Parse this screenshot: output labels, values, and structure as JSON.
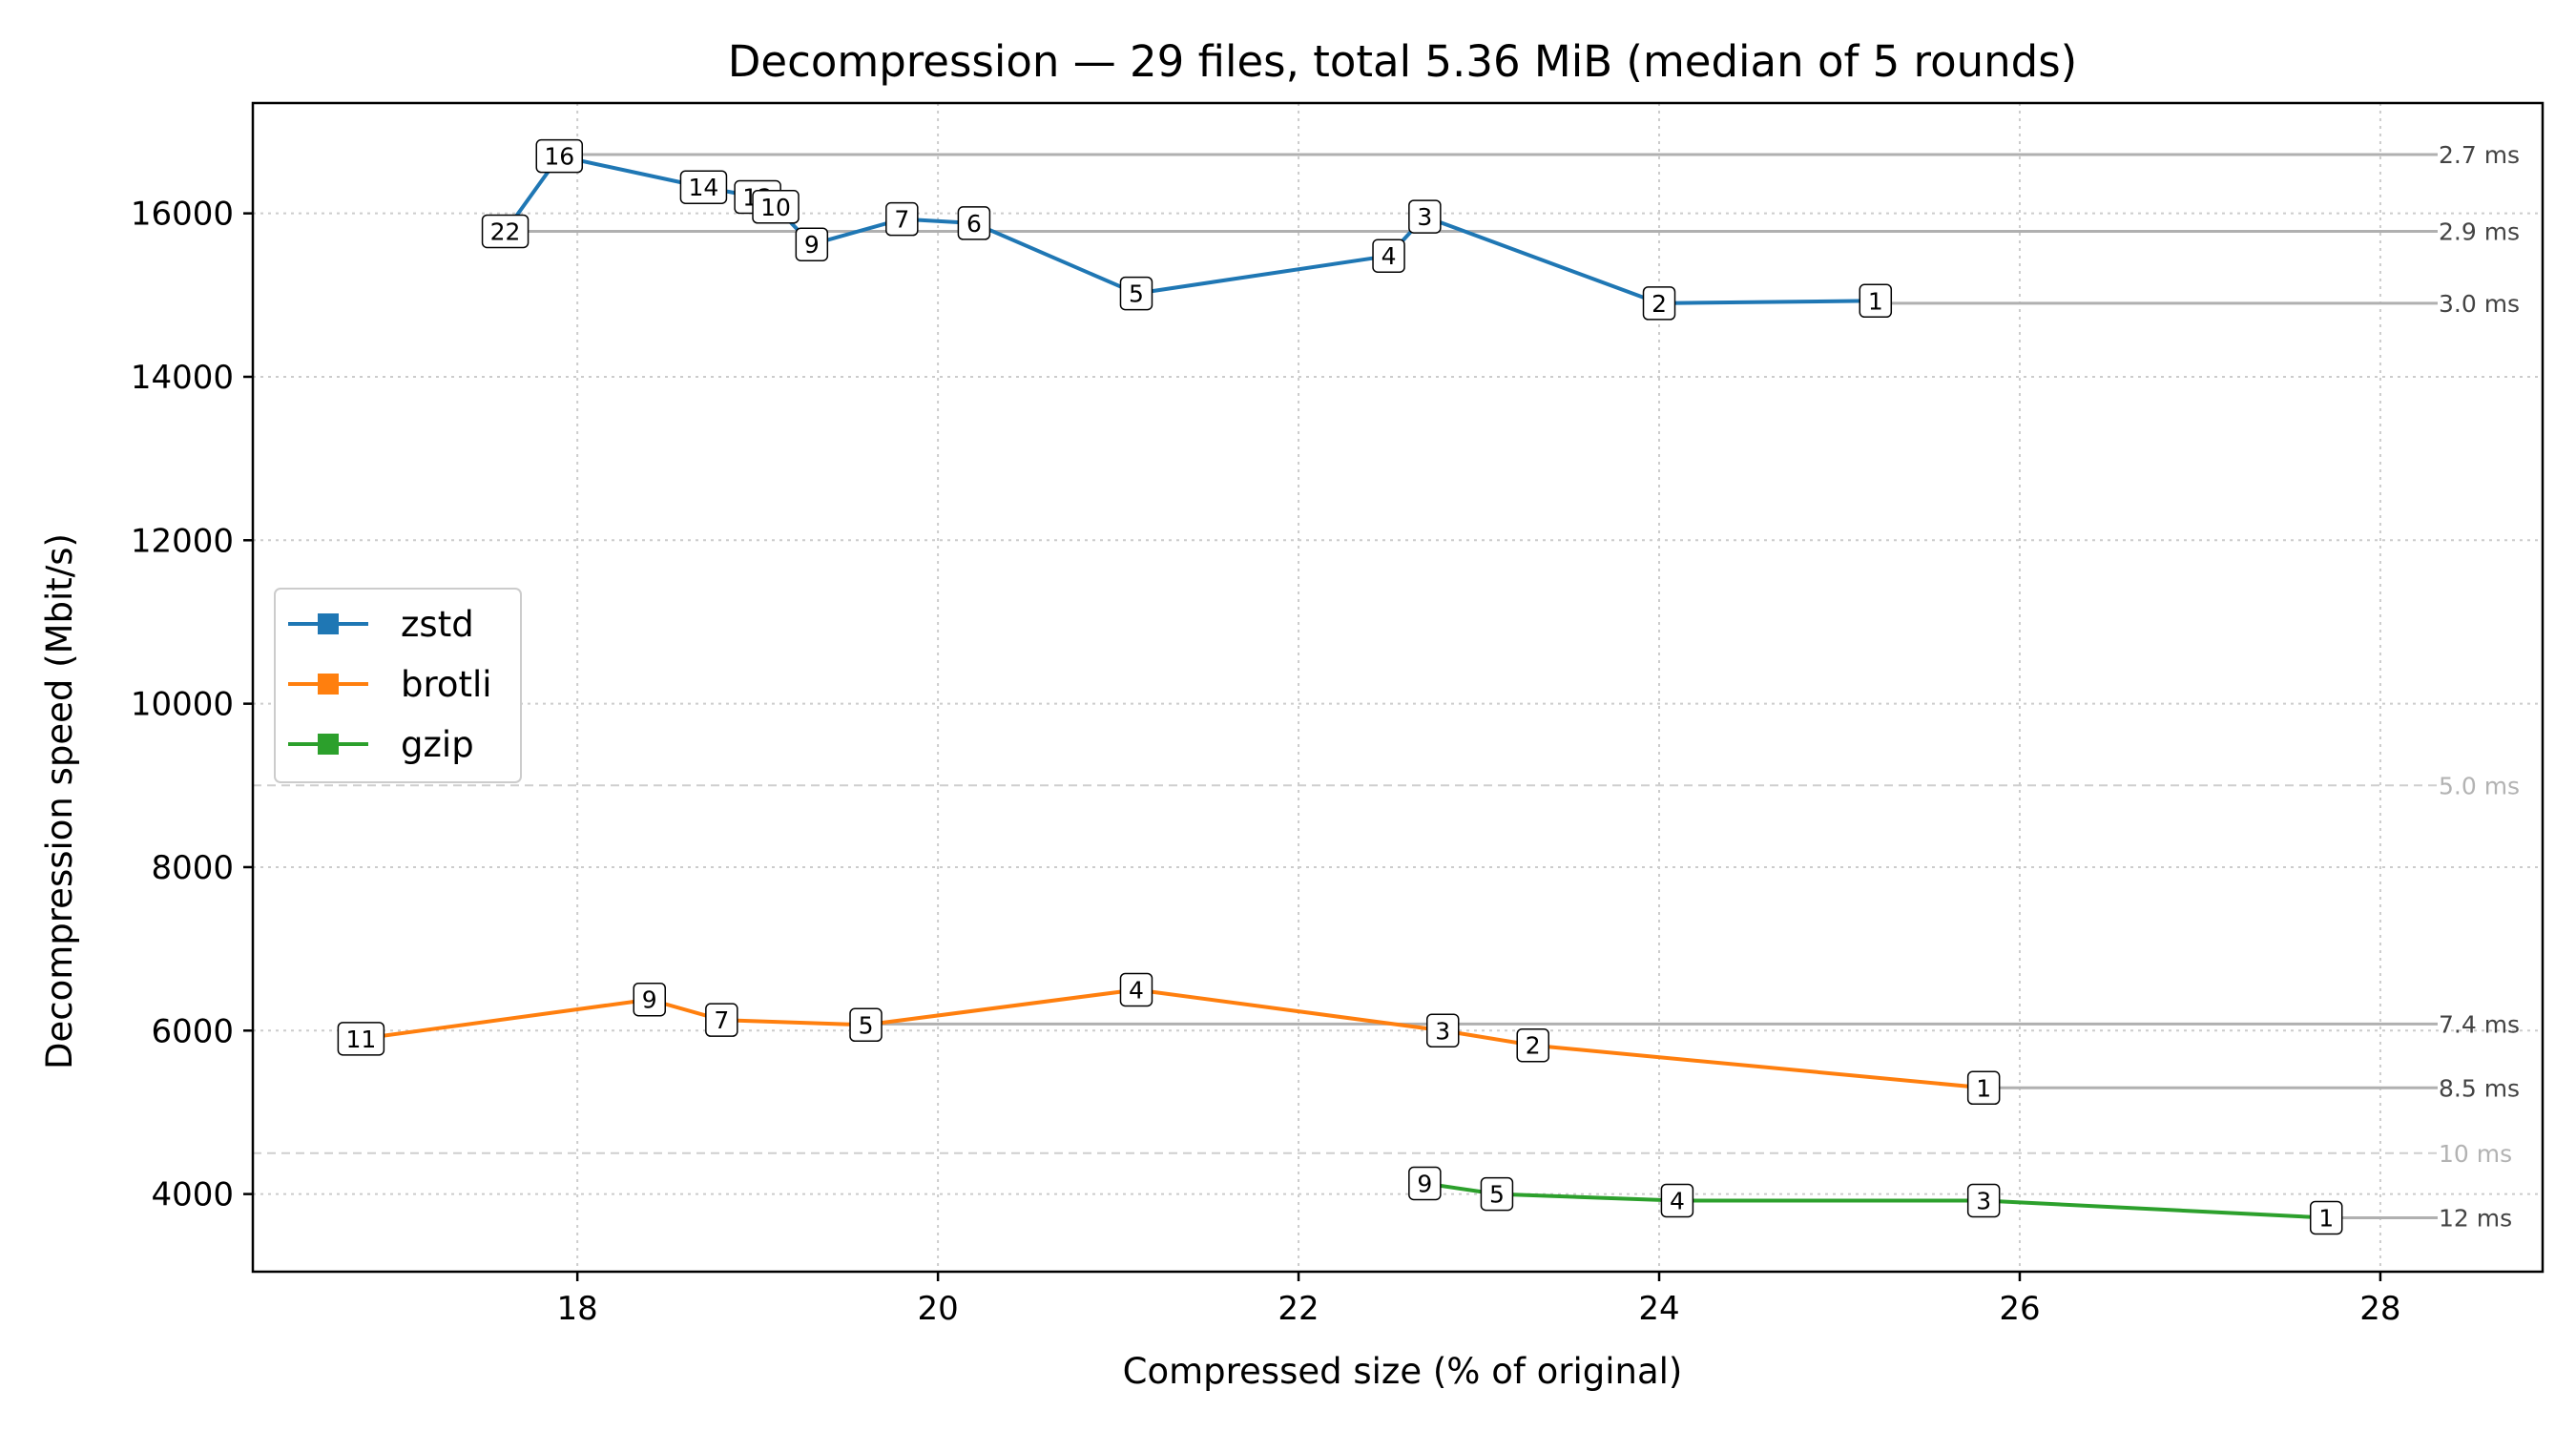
{
  "chart_data": {
    "type": "line",
    "title": "Decompression — 29 files, total 5.36 MiB (median of 5 rounds)",
    "xlabel": "Compressed size (% of original)",
    "ylabel": "Decompression speed (Mbit/s)",
    "xlim": [
      16.2,
      28.9
    ],
    "ylim": [
      3050,
      17350
    ],
    "xticks": [
      18,
      20,
      22,
      24,
      26,
      28
    ],
    "yticks": [
      4000,
      6000,
      8000,
      10000,
      12000,
      14000,
      16000
    ],
    "grid": true,
    "legend_position": "center-left",
    "series": [
      {
        "name": "zstd",
        "color": "#1f77b4",
        "points": [
          {
            "label": "22",
            "x": 17.6,
            "y": 15780
          },
          {
            "label": "16",
            "x": 17.9,
            "y": 16700
          },
          {
            "label": "14",
            "x": 18.7,
            "y": 16320
          },
          {
            "label": "12",
            "x": 19.0,
            "y": 16200
          },
          {
            "label": "10",
            "x": 19.1,
            "y": 16080
          },
          {
            "label": "9",
            "x": 19.3,
            "y": 15620
          },
          {
            "label": "7",
            "x": 19.8,
            "y": 15930
          },
          {
            "label": "6",
            "x": 20.2,
            "y": 15880
          },
          {
            "label": "5",
            "x": 21.1,
            "y": 15020
          },
          {
            "label": "4",
            "x": 22.5,
            "y": 15480
          },
          {
            "label": "3",
            "x": 22.7,
            "y": 15960
          },
          {
            "label": "2",
            "x": 24.0,
            "y": 14900
          },
          {
            "label": "1",
            "x": 25.2,
            "y": 14930
          }
        ]
      },
      {
        "name": "brotli",
        "color": "#ff7f0e",
        "points": [
          {
            "label": "11",
            "x": 16.8,
            "y": 5900
          },
          {
            "label": "9",
            "x": 18.4,
            "y": 6380
          },
          {
            "label": "7",
            "x": 18.8,
            "y": 6130
          },
          {
            "label": "5",
            "x": 19.6,
            "y": 6070
          },
          {
            "label": "4",
            "x": 21.1,
            "y": 6500
          },
          {
            "label": "3",
            "x": 22.8,
            "y": 6000
          },
          {
            "label": "2",
            "x": 23.3,
            "y": 5820
          },
          {
            "label": "1",
            "x": 25.8,
            "y": 5300
          }
        ]
      },
      {
        "name": "gzip",
        "color": "#2ca02c",
        "points": [
          {
            "label": "9",
            "x": 22.7,
            "y": 4130
          },
          {
            "label": "5",
            "x": 23.1,
            "y": 4000
          },
          {
            "label": "4",
            "x": 24.1,
            "y": 3920
          },
          {
            "label": "3",
            "x": 25.8,
            "y": 3920
          },
          {
            "label": "1",
            "x": 27.7,
            "y": 3710
          }
        ]
      }
    ],
    "reference_lines": [
      {
        "label": "2.7 ms",
        "y": 16720,
        "x_start": 17.9,
        "strong": true
      },
      {
        "label": "2.9 ms",
        "y": 15780,
        "x_start": 17.6,
        "strong": true
      },
      {
        "label": "3.0 ms",
        "y": 14900,
        "x_start": 25.2,
        "strong": true
      },
      {
        "label": "5.0 ms",
        "y": 9000,
        "x_start": 16.2,
        "strong": false
      },
      {
        "label": "7.4 ms",
        "y": 6080,
        "x_start": 19.6,
        "strong": true
      },
      {
        "label": "8.5 ms",
        "y": 5300,
        "x_start": 25.8,
        "strong": true
      },
      {
        "label": "10 ms",
        "y": 4500,
        "x_start": 16.2,
        "strong": false
      },
      {
        "label": "12 ms",
        "y": 3710,
        "x_start": 27.7,
        "strong": true
      }
    ]
  }
}
